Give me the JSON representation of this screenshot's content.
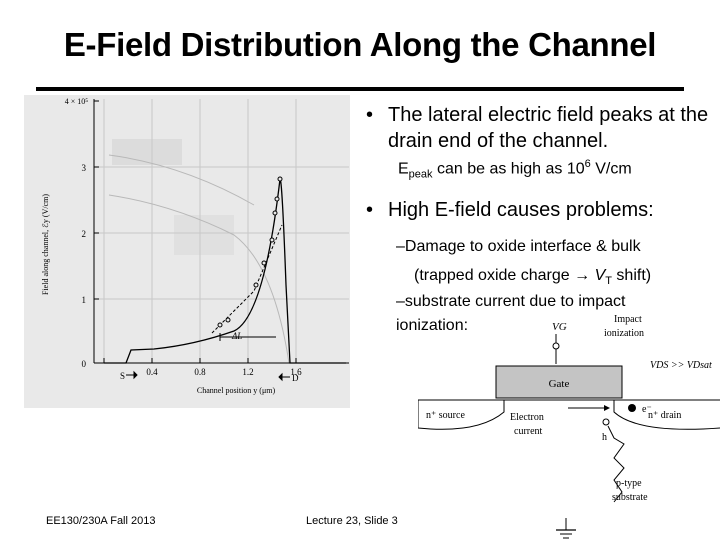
{
  "slide": {
    "title": "E-Field Distribution Along the Channel",
    "bullet1": "The lateral electric field peaks at the drain end of the channel.",
    "sub_peak": {
      "prefix": "E",
      "sub": "peak",
      "middle": " can be as high as 10",
      "sup": "6",
      "suffix": " V/cm"
    },
    "bullet2": "High E-field causes problems:",
    "sub1": {
      "line1": "Damage to oxide interface & bulk",
      "line2_pre": "(trapped oxide charge ",
      "arrow": "→",
      "line2_v": "V",
      "line2_sub": "T",
      "line2_post": "  shift)"
    },
    "sub2": "substrate current due to impact ionization:"
  },
  "graph": {
    "y_tick_labels": [
      "0",
      "1",
      "2",
      "3",
      "4 × 10⁵"
    ],
    "x_tick_labels": [
      "0.4",
      "0.8",
      "1.2",
      "1.6"
    ],
    "y_axis_label": "Field along channel, ℰy (V/cm)",
    "x_axis_label": "Channel position y (μm)",
    "source_label": "S",
    "drain_label": "D",
    "dl_label": "ΔL"
  },
  "device": {
    "vg": "VG",
    "impact_ionization": "Impact ionization",
    "vds_cond": "VDS >> VDsat",
    "gate": "Gate",
    "source": "n⁺ source",
    "drain": "n⁺ drain",
    "electron_current": "Electron current",
    "electron": "e⁻",
    "hole": "h",
    "substrate": "p-type substrate"
  },
  "footer": {
    "course": "EE130/230A Fall 2013",
    "lecture": "Lecture 23, Slide 3"
  },
  "colors": {
    "figure_bg": "#e9e9e9",
    "gate_fill": "#c4c4c4",
    "grid": "#c8c8c8"
  }
}
